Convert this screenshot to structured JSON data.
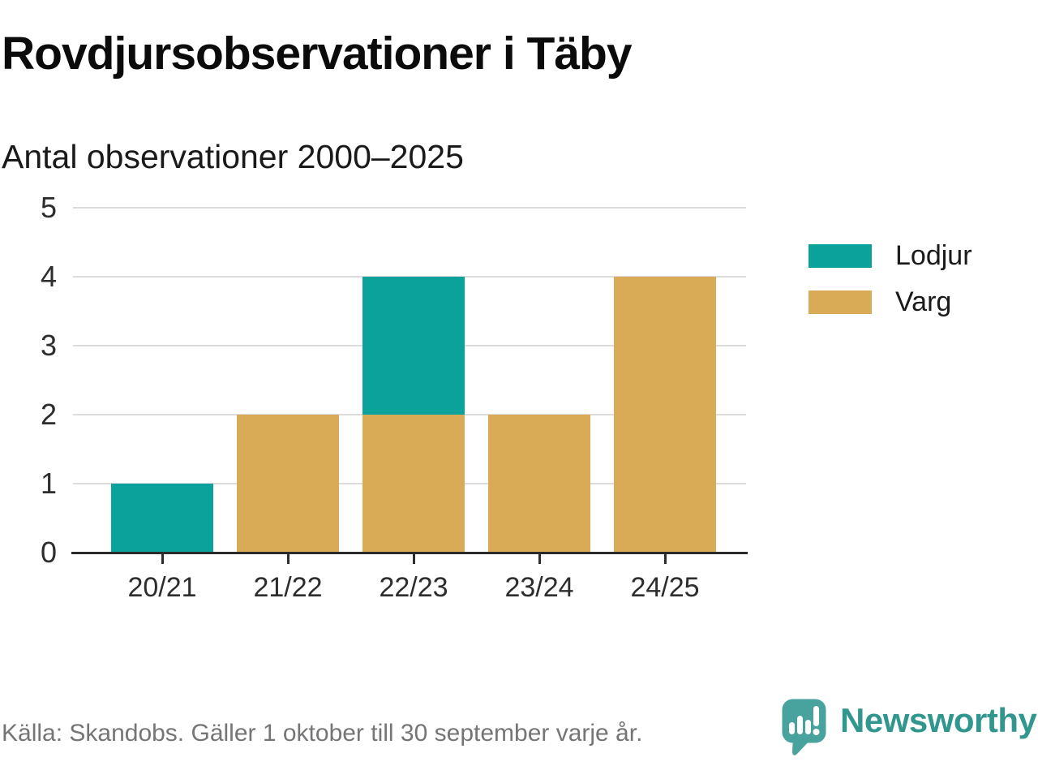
{
  "title": "Rovdjursobservationer i Täby",
  "subtitle": "Antal observationer 2000–2025",
  "legend": [
    {
      "label": "Lodjur",
      "color": "#0aa29a"
    },
    {
      "label": "Varg",
      "color": "#d9ab57"
    }
  ],
  "footer": {
    "source_text": "Källa: Skandobs. Gäller 1 oktober till 30 september varje år.",
    "brand_name": "Newsworthy"
  },
  "colors": {
    "lodjur_teal": "#0aa29a",
    "varg_tan": "#d9ab57",
    "gridline": "#dcdcdc",
    "axis": "#2b2b2b",
    "brand_bubble": "#48a29d",
    "brand_text": "#31968e",
    "muted_text": "#757577"
  },
  "chart_data": {
    "type": "bar",
    "stacked": true,
    "title": "Rovdjursobservationer i Täby",
    "subtitle": "Antal observationer 2000–2025",
    "xlabel": "",
    "ylabel": "",
    "categories": [
      "20/21",
      "21/22",
      "22/23",
      "23/24",
      "24/25"
    ],
    "series": [
      {
        "name": "Lodjur",
        "color": "#0aa29a",
        "values": [
          1,
          0,
          2,
          0,
          0
        ]
      },
      {
        "name": "Varg",
        "color": "#d9ab57",
        "values": [
          0,
          2,
          2,
          2,
          4
        ]
      }
    ],
    "stack_order_bottom_to_top": [
      "Varg",
      "Lodjur"
    ],
    "ylim": [
      0,
      5
    ],
    "yticks": [
      0,
      1,
      2,
      3,
      4,
      5
    ],
    "grid": true,
    "legend_position": "right"
  }
}
